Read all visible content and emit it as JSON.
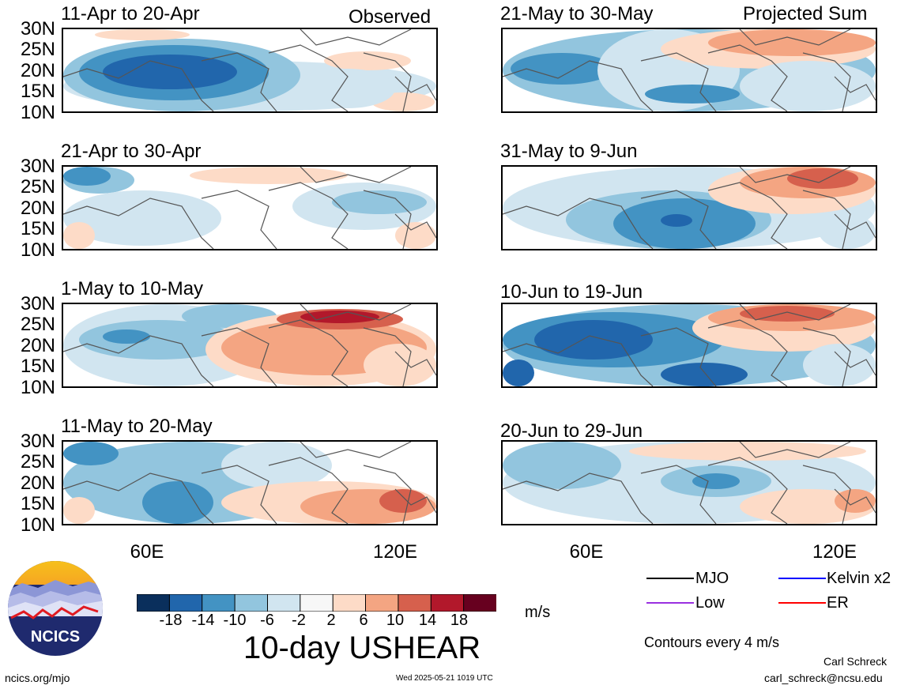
{
  "header": {
    "observed_label": "Observed",
    "projected_label": "Projected Sum"
  },
  "lat_labels": [
    "30N",
    "25N",
    "20N",
    "15N",
    "10N"
  ],
  "lon_labels": [
    "60E",
    "120E"
  ],
  "panels": [
    {
      "title": "11-Apr to 20-Apr",
      "pattern": "apr11"
    },
    {
      "title": "21-Apr to 30-Apr",
      "pattern": "apr21"
    },
    {
      "title": "1-May to 10-May",
      "pattern": "may01"
    },
    {
      "title": "11-May to 20-May",
      "pattern": "may11"
    },
    {
      "title": "21-May to 30-May",
      "pattern": "may21"
    },
    {
      "title": "31-May to 9-Jun",
      "pattern": "may31"
    },
    {
      "title": "10-Jun to 19-Jun",
      "pattern": "jun10"
    },
    {
      "title": "20-Jun to 29-Jun",
      "pattern": "jun20"
    }
  ],
  "colorbar": {
    "colors": [
      "#0a2f5c",
      "#2166ac",
      "#4393c3",
      "#92c5de",
      "#d1e5f0",
      "#f7f7f7",
      "#fddbc7",
      "#f4a582",
      "#d6604d",
      "#b2182b",
      "#67001f"
    ],
    "labels": [
      "-18",
      "-14",
      "-10",
      "-6",
      "-2",
      "2",
      "6",
      "10",
      "14",
      "18"
    ],
    "units": "m/s"
  },
  "main_title": "10-day USHEAR",
  "legend": {
    "items": [
      {
        "label": "MJO",
        "color": "#000000"
      },
      {
        "label": "Kelvin x2",
        "color": "#0000ff"
      },
      {
        "label": "Low",
        "color": "#9a30e0"
      },
      {
        "label": "ER",
        "color": "#ff0000"
      }
    ],
    "contours_note": "Contours every 4 m/s"
  },
  "logo": {
    "text": "NCICS"
  },
  "footer": {
    "url": "ncics.org/mjo",
    "timestamp": "Wed 2025-05-21 1019 UTC",
    "author": "Carl Schreck",
    "email": "carl_schreck@ncsu.edu"
  }
}
